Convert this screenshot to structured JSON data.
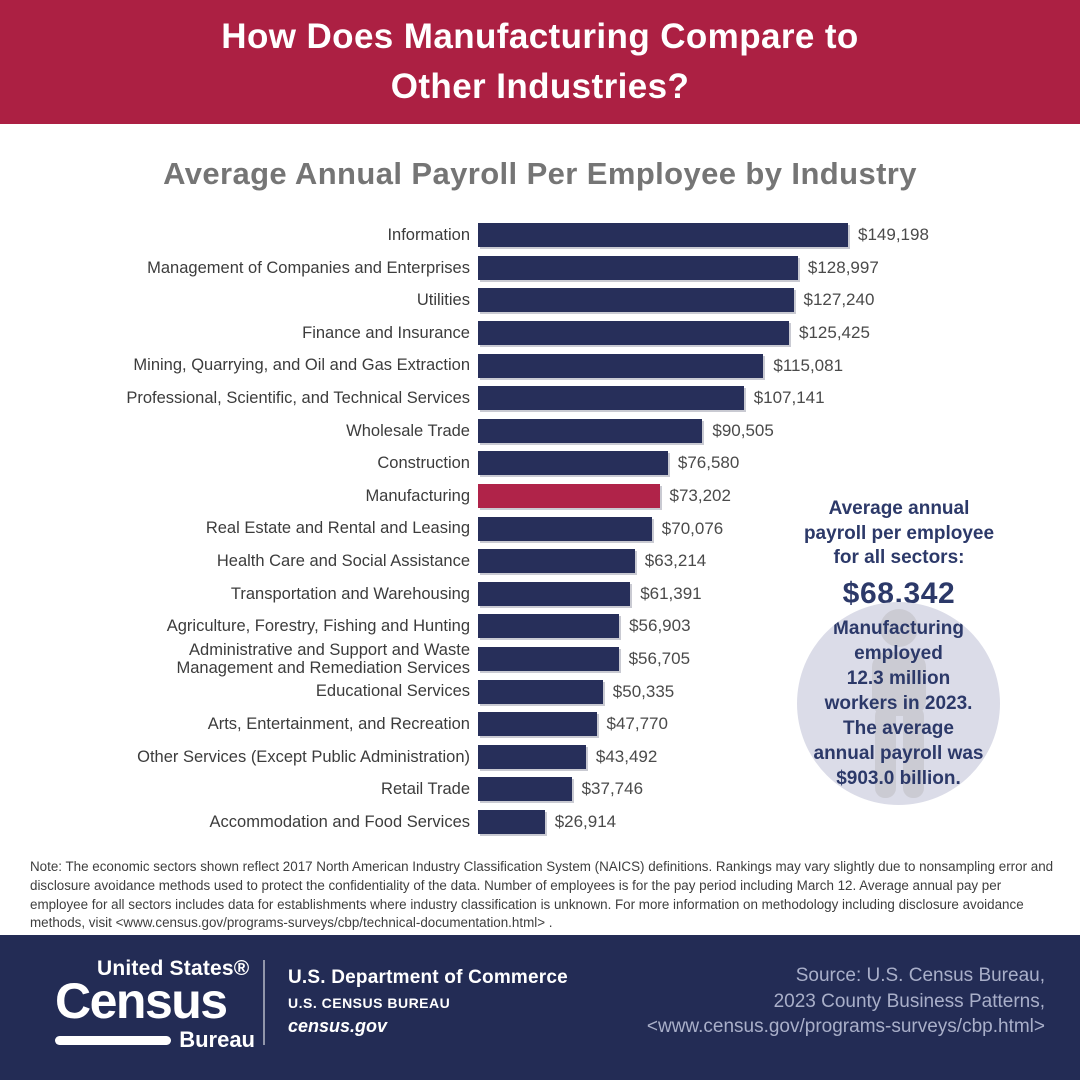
{
  "banner": {
    "title_lines": [
      "How Does Manufacturing Compare to",
      "Other Industries?"
    ],
    "bg_color": "#AC2043"
  },
  "chart_data": {
    "type": "bar",
    "orientation": "horizontal",
    "title": "Average Annual Payroll Per Employee by Industry",
    "xlabel": "",
    "ylabel": "",
    "xlim": [
      0,
      160000
    ],
    "grid": false,
    "legend": "none",
    "value_prefix": "$",
    "categories": [
      "Information",
      "Management of Companies and Enterprises",
      "Utilities",
      "Finance and Insurance",
      "Mining, Quarrying, and Oil and Gas Extraction",
      "Professional, Scientific, and Technical Services",
      "Wholesale Trade",
      "Construction",
      "Manufacturing",
      "Real Estate and Rental and Leasing",
      "Health Care and Social Assistance",
      "Transportation and Warehousing",
      "Agriculture, Forestry, Fishing and Hunting",
      "Administrative and Support and Waste\nManagement and Remediation Services",
      "Educational Services",
      "Arts, Entertainment, and Recreation",
      "Other Services (Except Public Administration)",
      "Retail Trade",
      "Accommodation and Food Services"
    ],
    "values": [
      149198,
      128997,
      127240,
      125425,
      115081,
      107141,
      90505,
      76580,
      73202,
      70076,
      63214,
      61391,
      56903,
      56705,
      50335,
      47770,
      43492,
      37746,
      26914
    ],
    "value_labels": [
      "$149,198",
      "$128,997",
      "$127,240",
      "$125,425",
      "$115,081",
      "$107,141",
      "$90,505",
      "$76,580",
      "$73,202",
      "$70,076",
      "$63,214",
      "$61,391",
      "$56,903",
      "$56,705",
      "$50,335",
      "$47,770",
      "$43,492",
      "$37,746",
      "$26,914"
    ],
    "highlight_category": "Manufacturing",
    "bar_color": "#272F5A",
    "highlight_color": "#B02349"
  },
  "stat_panel": {
    "heading_lines": [
      "Average annual",
      "payroll per employee",
      "for all sectors:"
    ],
    "value": "$68,342"
  },
  "circle_callout": {
    "text_lines": [
      "Manufacturing",
      "employed",
      "12.3 million",
      "workers in 2023.",
      "The average",
      "annual payroll was",
      "$903.0 billion."
    ]
  },
  "note": "Note: The economic sectors shown reflect 2017 North American Industry Classification System (NAICS) definitions. Rankings may vary slightly due to nonsampling error and disclosure avoidance methods used to protect the confidentiality of the data. Number of employees is for the pay period including March 12. Average annual pay per employee for all sectors includes data for establishments where industry classification is unknown. For more information on methodology including disclosure avoidance methods, visit <www.census.gov/programs-surveys/cbp/technical-documentation.html> .",
  "footer": {
    "logo": {
      "top": "United States®",
      "main": "Census",
      "sub": "Bureau"
    },
    "dept_line1": "U.S. Department of Commerce",
    "dept_line2": "U.S. CENSUS BUREAU",
    "dept_line3": "census.gov",
    "source_lines": [
      "Source: U.S. Census Bureau,",
      "2023 County Business Patterns,",
      "<www.census.gov/programs-surveys/cbp.html>"
    ]
  }
}
